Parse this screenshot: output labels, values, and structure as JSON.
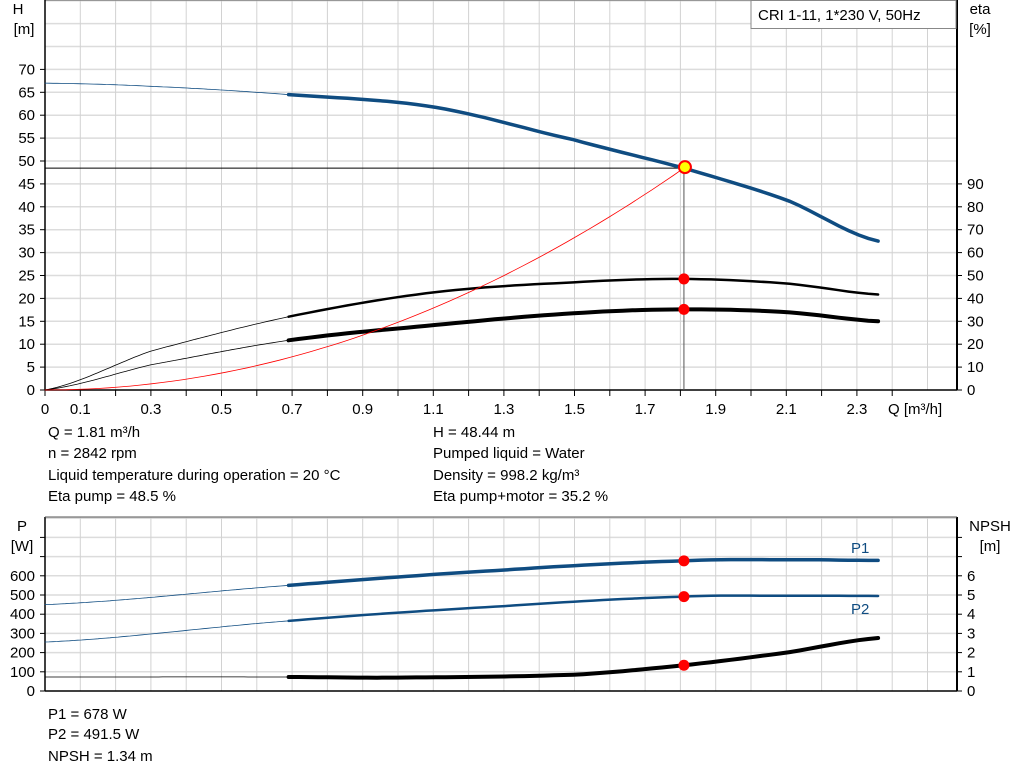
{
  "chart_data": [
    {
      "type": "line",
      "title": "CRI 1-11, 1*230 V, 50Hz",
      "xlabel": "Q [m³/h]",
      "ylabel_left": [
        "H",
        "[m]"
      ],
      "ylabel_right": [
        "eta",
        "[%]"
      ],
      "xlim": [
        0,
        2.58
      ],
      "ylim_left": [
        0,
        85
      ],
      "ylim_right": [
        0,
        170
      ],
      "grid": true,
      "x_ticks": [
        "0",
        "0.1",
        "0.3",
        "0.5",
        "0.7",
        "0.9",
        "1.1",
        "1.3",
        "1.5",
        "1.7",
        "1.9",
        "2.1",
        "2.3"
      ],
      "y_left_ticks": [
        "0",
        "5",
        "10",
        "15",
        "20",
        "25",
        "30",
        "35",
        "40",
        "45",
        "50",
        "55",
        "60",
        "65",
        "70"
      ],
      "y_right_ticks": [
        "0",
        "10",
        "20",
        "30",
        "40",
        "50",
        "60",
        "70",
        "80",
        "90"
      ],
      "series": [
        {
          "id": "H",
          "axis": "left",
          "color": "#0f4c81",
          "x": [
            0,
            0.3,
            0.69,
            1.1,
            1.5,
            1.81,
            2.1,
            2.36
          ],
          "y": [
            67,
            66.3,
            64.5,
            61.8,
            54.6,
            48.44,
            41.5,
            32.5
          ]
        },
        {
          "id": "eta-pump",
          "axis": "right",
          "color": "#000000",
          "x": [
            0,
            0.3,
            0.69,
            1.1,
            1.5,
            1.81,
            2.1,
            2.36
          ],
          "y": [
            0,
            17,
            32,
            42.6,
            47,
            48.5,
            46.5,
            41.7
          ]
        },
        {
          "id": "eta-pump-motor",
          "axis": "right",
          "color": "#000000",
          "x": [
            0,
            0.3,
            0.69,
            1.1,
            1.5,
            1.81,
            2.1,
            2.36
          ],
          "y": [
            0,
            11,
            21.7,
            28.3,
            33.5,
            35.2,
            34,
            30
          ]
        },
        {
          "id": "system-curve",
          "axis": "left",
          "color": "#ff0000",
          "quadratic_through": [
            1.81,
            48.44
          ]
        }
      ],
      "operating_point": {
        "Q": 1.81,
        "H": 48.44,
        "eta_pump": 48.5,
        "eta_pump_motor": 35.2
      }
    },
    {
      "type": "line",
      "ylabel_left": [
        "P",
        "[W]"
      ],
      "ylabel_right": [
        "NPSH",
        "[m]"
      ],
      "xlim": [
        0,
        2.58
      ],
      "ylim_left": [
        0,
        900
      ],
      "ylim_right": [
        0,
        9
      ],
      "grid": true,
      "y_left_ticks": [
        "0",
        "100",
        "200",
        "300",
        "400",
        "500",
        "600"
      ],
      "y_right_ticks": [
        "0",
        "1",
        "2",
        "3",
        "4",
        "5",
        "6"
      ],
      "series": [
        {
          "id": "P1",
          "name": "P1",
          "axis": "left",
          "color": "#0f4c81",
          "x": [
            0,
            0.69,
            1.3,
            1.81,
            2.1,
            2.36
          ],
          "y": [
            450,
            550,
            630,
            678,
            684,
            680
          ]
        },
        {
          "id": "P2",
          "name": "P2",
          "axis": "left",
          "color": "#0f4c81",
          "x": [
            0,
            0.69,
            1.3,
            1.81,
            2.1,
            2.36
          ],
          "y": [
            255,
            365,
            442,
            491.5,
            496,
            495
          ]
        },
        {
          "id": "NPSH",
          "axis": "right",
          "color": "#000000",
          "x": [
            0,
            0.69,
            1.0,
            1.5,
            1.81,
            2.1,
            2.36
          ],
          "y": [
            0.73,
            0.73,
            0.7,
            0.85,
            1.34,
            2.0,
            2.76
          ]
        }
      ],
      "operating_point": {
        "Q": 1.81,
        "P1": 678,
        "P2": 491.5,
        "NPSH": 1.34
      }
    }
  ],
  "info_top": {
    "q": "Q = 1.81 m³/h",
    "n": "n = 2842 rpm",
    "temp": "Liquid temperature during operation = 20 °C",
    "eta_pump": "Eta pump = 48.5 %",
    "h": "H = 48.44 m",
    "liquid": "Pumped liquid = Water",
    "density": "Density = 998.2 kg/m³",
    "eta_pm": "Eta pump+motor = 35.2 %"
  },
  "info_bottom": {
    "p1": "P1 = 678 W",
    "p2": "P2 = 491.5 W",
    "npsh": "NPSH = 1.34 m"
  }
}
